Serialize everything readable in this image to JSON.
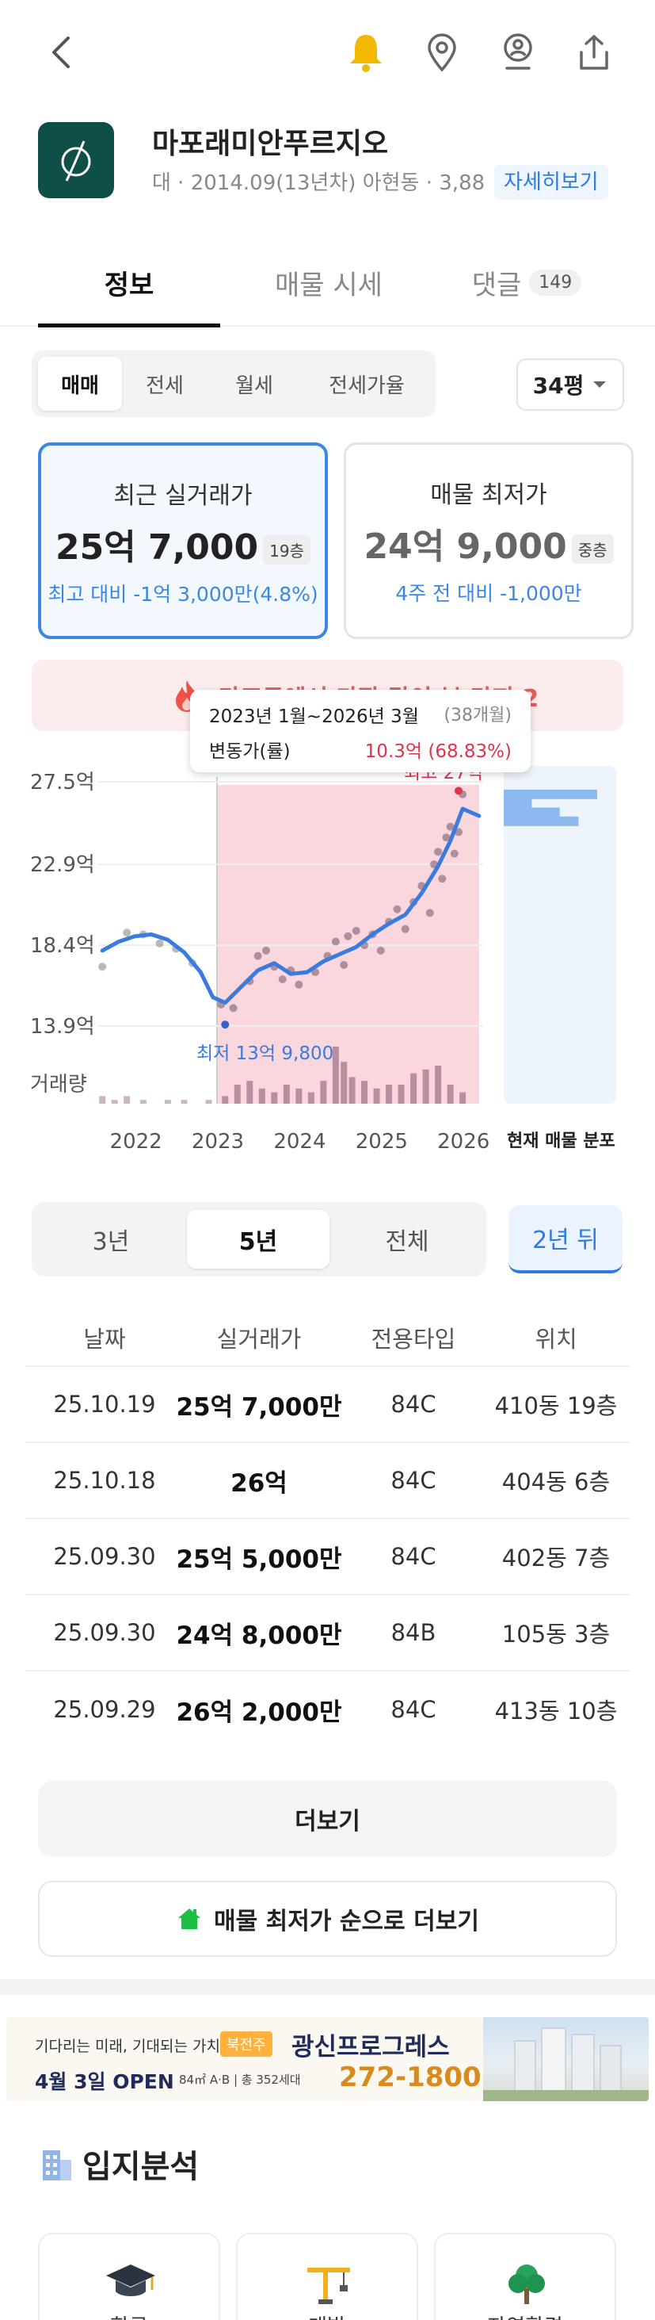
{
  "topbar": {
    "back": "back-icon",
    "icons": [
      "bell-icon",
      "map-pin-icon",
      "location-user-icon",
      "share-icon"
    ],
    "bell_color": "#f5b800"
  },
  "header": {
    "name": "마포래미안푸르지오",
    "meta": "대 · 2014.09(13년차) 아현동 · 3,88",
    "detail_label": "자세히보기"
  },
  "tabs": [
    {
      "label": "정보",
      "active": true
    },
    {
      "label": "매물 시세",
      "active": false
    },
    {
      "label": "댓글",
      "badge": "149",
      "active": false
    }
  ],
  "deal_types": [
    "매매",
    "전세",
    "월세",
    "전세가율"
  ],
  "size_select": "34평",
  "cards": {
    "recent": {
      "title": "최근 실거래가",
      "price": "25억 7,000",
      "floor": "19층",
      "sub": "최고 대비 -1억 3,000만(4.8%)"
    },
    "lowest": {
      "title": "매물 최저가",
      "price": "24억 9,000",
      "floor": "중층",
      "sub": "4주 전 대비 -1,000만"
    }
  },
  "alert": {
    "text": "마포구에서 가장 많이 본 단지 2"
  },
  "tooltip": {
    "period": "2023년 1월~2026년 3월",
    "months": "(38개월)",
    "label": "변동가(률)",
    "value": "10.3억 (68.83%)"
  },
  "chart_data": {
    "type": "line",
    "ylim": [
      13.9,
      27.5
    ],
    "y_ticks": [
      "27.5억",
      "22.9억",
      "18.4억",
      "13.9억"
    ],
    "y_tick_values": [
      27.5,
      22.9,
      18.4,
      13.9
    ],
    "x_ticks": [
      "2022",
      "2023",
      "2024",
      "2025",
      "2026"
    ],
    "volume_label": "거래량",
    "distribution_label": "현재 매물 분포",
    "min_label": "최저 13억 9,800",
    "max_label_partial": "최고 27억",
    "highlight_range": [
      "2023-01",
      "2026-03"
    ],
    "colors": {
      "line": "#3a7be0",
      "highlight": "#f7c9d2",
      "dots": "#8a8a8a",
      "dots_highlight": "#7a5f73",
      "volume": "#c8b7bd",
      "distribution": "#8cb9f0"
    },
    "trend": {
      "x": [
        2021.6,
        2021.8,
        2022.0,
        2022.2,
        2022.4,
        2022.6,
        2022.8,
        2022.95,
        2023.1,
        2023.3,
        2023.5,
        2023.7,
        2023.9,
        2024.1,
        2024.3,
        2024.5,
        2024.7,
        2024.9,
        2025.1,
        2025.3,
        2025.5,
        2025.7,
        2025.85,
        2026.0,
        2026.2
      ],
      "y": [
        18.1,
        18.6,
        18.9,
        19.0,
        18.7,
        18.0,
        16.9,
        15.5,
        15.2,
        16.1,
        17.0,
        17.4,
        16.8,
        16.9,
        17.5,
        17.9,
        18.3,
        19.0,
        19.6,
        20.1,
        21.3,
        22.8,
        24.2,
        26.0,
        25.6
      ]
    },
    "transactions": {
      "x": [
        2021.6,
        2021.9,
        2022.1,
        2022.3,
        2022.5,
        2022.7,
        2023.05,
        2023.2,
        2023.4,
        2023.5,
        2023.6,
        2023.7,
        2023.8,
        2023.9,
        2024.0,
        2024.2,
        2024.35,
        2024.45,
        2024.55,
        2024.6,
        2024.7,
        2024.8,
        2024.9,
        2025.0,
        2025.1,
        2025.2,
        2025.3,
        2025.4,
        2025.5,
        2025.6,
        2025.65,
        2025.7,
        2025.75,
        2025.8,
        2025.85,
        2025.9,
        2025.95,
        2026.0
      ],
      "y": [
        17.2,
        19.1,
        19.0,
        18.5,
        18.2,
        17.4,
        15.1,
        14.9,
        16.4,
        17.8,
        18.1,
        17.2,
        16.5,
        17.0,
        16.2,
        16.9,
        17.8,
        18.6,
        17.3,
        18.9,
        19.2,
        18.4,
        19.0,
        18.1,
        19.7,
        20.4,
        19.3,
        20.8,
        21.7,
        20.2,
        22.9,
        23.6,
        22.1,
        24.4,
        25.0,
        23.5,
        24.7,
        26.8
      ]
    },
    "volume": {
      "x": [
        2021.6,
        2021.75,
        2021.9,
        2022.1,
        2022.4,
        2022.6,
        2022.9,
        2023.1,
        2023.25,
        2023.4,
        2023.55,
        2023.7,
        2023.85,
        2024.0,
        2024.15,
        2024.3,
        2024.45,
        2024.55,
        2024.65,
        2024.8,
        2024.95,
        2025.1,
        2025.25,
        2025.4,
        2025.55,
        2025.7,
        2025.85,
        2026.0
      ],
      "v": [
        2,
        1,
        2,
        1,
        1,
        1,
        1,
        2,
        5,
        6,
        4,
        3,
        5,
        4,
        3,
        6,
        15,
        11,
        7,
        6,
        4,
        5,
        5,
        8,
        9,
        10,
        5,
        3
      ]
    },
    "distribution": [
      {
        "price": 26.8,
        "count": 10
      },
      {
        "price": 26.3,
        "count": 3
      },
      {
        "price": 25.8,
        "count": 6
      },
      {
        "price": 25.3,
        "count": 8
      }
    ]
  },
  "periods": [
    {
      "label": "3년",
      "active": false
    },
    {
      "label": "5년",
      "active": true
    },
    {
      "label": "전체",
      "active": false
    }
  ],
  "after_label": "2년 뒤",
  "table": {
    "headers": [
      "날짜",
      "실거래가",
      "전용타입",
      "위치"
    ],
    "rows": [
      {
        "date": "25.10.19",
        "price": "25억 7,000만",
        "type": "84C",
        "loc": "410동 19층"
      },
      {
        "date": "25.10.18",
        "price": "26억",
        "type": "84C",
        "loc": "404동 6층"
      },
      {
        "date": "25.09.30",
        "price": "25억 5,000만",
        "type": "84C",
        "loc": "402동 7층"
      },
      {
        "date": "25.09.30",
        "price": "24억 8,000만",
        "type": "84B",
        "loc": "105동 3층"
      },
      {
        "date": "25.09.29",
        "price": "26억 2,000만",
        "type": "84C",
        "loc": "413동 10층"
      }
    ]
  },
  "more_label": "더보기",
  "lowest_more_label": "매물 최저가 순으로 더보기",
  "ad": {
    "tagline": "기다리는 미래, 기대되는 가치",
    "region": "북전주",
    "brand": "광신프로그레스",
    "open": "4월 3일 OPEN",
    "spec": "84㎡ A·B | 총 352세대",
    "tel": "272-1800"
  },
  "location": {
    "title": "입지분석",
    "cards": [
      {
        "icon": "graduation-cap-icon",
        "label": "학군"
      },
      {
        "icon": "crane-icon",
        "label": "개발"
      },
      {
        "icon": "tree-icon",
        "label": "자연환경"
      }
    ]
  }
}
